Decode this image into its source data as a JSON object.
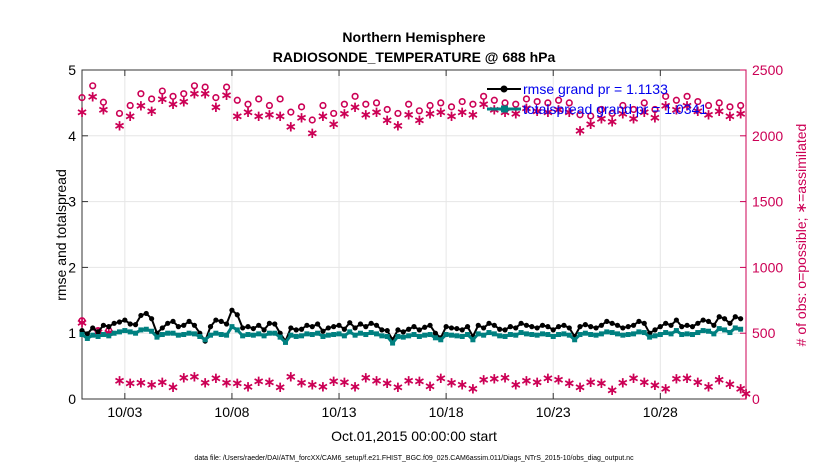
{
  "chart_data": {
    "type": "line",
    "title": "Northern Hemisphere",
    "subtitle": "RADIOSONDE_TEMPERATURE @ 688 hPa",
    "xlabel": "Oct.01,2015 00:00:00 start",
    "ylabel_left": "rmse and totalspread",
    "ylabel_right": "# of obs: o=possible; ∗=assimilated",
    "footnote": "data file: /Users/raeder/DAI/ATM_forcXX/CAM6_setup/f.e21.FHIST_BGC.f09_025.CAM6assim.011/Diags_NTrS_2015-10/obs_diag_output.nc",
    "xlim": [
      1.0,
      32.0
    ],
    "ylim_left": [
      0,
      5
    ],
    "ylim_right": [
      0,
      2500
    ],
    "x_ticks": [
      3,
      8,
      13,
      18,
      23,
      28
    ],
    "x_tick_labels": [
      "10/03",
      "10/08",
      "10/13",
      "10/18",
      "10/23",
      "10/28"
    ],
    "y_ticks_left": [
      0,
      1,
      2,
      3,
      4,
      5
    ],
    "y_ticks_right": [
      0,
      500,
      1000,
      1500,
      2000,
      2500
    ],
    "colors": {
      "rmse": "#000000",
      "spread": "#008080",
      "obs": "#cc0055",
      "legend_text": "#0000ee",
      "grid": "#e6e6e6"
    },
    "legend": {
      "location": "top-right",
      "entries": [
        {
          "name": "rmse grand pr = 1.1133",
          "color": "#000000"
        },
        {
          "name": "totalspread grand pr = 1.0341",
          "color": "#008080"
        }
      ]
    },
    "x": [
      1.0,
      1.25,
      1.5,
      1.75,
      2.0,
      2.25,
      2.5,
      2.75,
      3.0,
      3.25,
      3.5,
      3.75,
      4.0,
      4.25,
      4.5,
      4.75,
      5.0,
      5.25,
      5.5,
      5.75,
      6.0,
      6.25,
      6.5,
      6.75,
      7.0,
      7.25,
      7.5,
      7.75,
      8.0,
      8.25,
      8.5,
      8.75,
      9.0,
      9.25,
      9.5,
      9.75,
      10.0,
      10.25,
      10.5,
      10.75,
      11.0,
      11.25,
      11.5,
      11.75,
      12.0,
      12.25,
      12.5,
      12.75,
      13.0,
      13.25,
      13.5,
      13.75,
      14.0,
      14.25,
      14.5,
      14.75,
      15.0,
      15.25,
      15.5,
      15.75,
      16.0,
      16.25,
      16.5,
      16.75,
      17.0,
      17.25,
      17.5,
      17.75,
      18.0,
      18.25,
      18.5,
      18.75,
      19.0,
      19.25,
      19.5,
      19.75,
      20.0,
      20.25,
      20.5,
      20.75,
      21.0,
      21.25,
      21.5,
      21.75,
      22.0,
      22.25,
      22.5,
      22.75,
      23.0,
      23.25,
      23.5,
      23.75,
      24.0,
      24.25,
      24.5,
      24.75,
      25.0,
      25.25,
      25.5,
      25.75,
      26.0,
      26.25,
      26.5,
      26.75,
      27.0,
      27.25,
      27.5,
      27.75,
      28.0,
      28.25,
      28.5,
      28.75,
      29.0,
      29.25,
      29.5,
      29.75,
      30.0,
      30.25,
      30.5,
      30.75,
      31.0,
      31.25,
      31.5,
      31.75
    ],
    "series": [
      {
        "name": "rmse",
        "axis": "left",
        "color": "#000000",
        "values": [
          1.04,
          0.99,
          1.08,
          1.02,
          1.12,
          1.1,
          1.15,
          1.17,
          1.2,
          1.14,
          1.13,
          1.27,
          1.3,
          1.22,
          1.0,
          1.08,
          1.15,
          1.18,
          1.1,
          1.12,
          1.18,
          1.12,
          1.0,
          0.88,
          1.1,
          1.2,
          1.18,
          1.14,
          1.35,
          1.28,
          1.08,
          1.1,
          1.07,
          1.12,
          1.05,
          1.15,
          1.14,
          1.0,
          0.88,
          1.08,
          1.05,
          1.06,
          1.12,
          1.1,
          1.14,
          1.03,
          1.08,
          1.1,
          1.12,
          1.06,
          1.16,
          1.08,
          1.14,
          1.1,
          1.15,
          1.12,
          1.05,
          1.04,
          0.9,
          1.05,
          1.02,
          1.06,
          1.1,
          1.05,
          1.09,
          1.12,
          1.0,
          0.93,
          1.1,
          1.08,
          1.07,
          1.05,
          1.1,
          0.95,
          1.12,
          1.08,
          1.15,
          1.12,
          1.06,
          1.05,
          1.1,
          1.08,
          1.15,
          1.12,
          1.1,
          1.08,
          1.12,
          1.1,
          1.05,
          1.1,
          1.12,
          1.08,
          0.95,
          1.1,
          1.13,
          1.1,
          1.08,
          1.12,
          1.18,
          1.15,
          1.12,
          1.08,
          1.1,
          1.12,
          1.18,
          1.15,
          1.0,
          1.05,
          1.1,
          1.15,
          1.12,
          1.2,
          1.1,
          1.12,
          1.1,
          1.15,
          1.2,
          1.18,
          1.12,
          1.25,
          1.22,
          1.15,
          1.25,
          1.22
        ]
      },
      {
        "name": "totalspread",
        "axis": "left",
        "color": "#008080",
        "values": [
          0.98,
          0.92,
          0.97,
          0.95,
          0.98,
          0.96,
          1.0,
          1.02,
          1.04,
          1.02,
          1.0,
          1.05,
          1.06,
          1.03,
          0.94,
          0.98,
          1.0,
          1.0,
          0.97,
          0.98,
          1.0,
          0.99,
          0.95,
          0.9,
          0.97,
          1.0,
          0.98,
          0.97,
          1.1,
          1.05,
          0.96,
          0.98,
          0.97,
          0.99,
          0.96,
          1.0,
          1.0,
          0.94,
          0.86,
          0.97,
          0.95,
          0.96,
          0.99,
          0.98,
          1.0,
          0.95,
          0.97,
          0.98,
          0.99,
          0.96,
          1.02,
          0.97,
          1.0,
          0.98,
          1.01,
          0.99,
          0.96,
          0.95,
          0.85,
          0.95,
          0.94,
          0.96,
          0.98,
          0.95,
          0.97,
          0.98,
          0.93,
          0.9,
          0.98,
          0.97,
          0.96,
          0.95,
          0.98,
          0.9,
          0.99,
          0.97,
          1.01,
          0.99,
          0.96,
          0.95,
          0.98,
          0.97,
          1.01,
          0.99,
          0.98,
          0.97,
          0.99,
          0.98,
          0.95,
          0.98,
          0.99,
          0.97,
          0.9,
          0.98,
          1.0,
          0.98,
          0.97,
          0.99,
          1.02,
          1.01,
          0.99,
          0.97,
          0.98,
          0.99,
          1.02,
          1.01,
          0.94,
          0.96,
          0.98,
          1.01,
          0.99,
          1.04,
          0.98,
          0.99,
          0.98,
          1.01,
          1.04,
          1.03,
          0.99,
          1.07,
          1.05,
          1.01,
          1.08,
          1.06
        ]
      }
    ],
    "obs_series": [
      {
        "name": "possible",
        "axis": "right",
        "marker": "o",
        "color": "#cc0055",
        "points": [
          [
            1.0,
            2290
          ],
          [
            1.0,
            595
          ],
          [
            1.5,
            2380
          ],
          [
            1.75,
            520
          ],
          [
            2.0,
            2255
          ],
          [
            2.25,
            520
          ],
          [
            2.75,
            2170
          ],
          [
            3.25,
            2230
          ],
          [
            3.75,
            2320
          ],
          [
            4.25,
            2280
          ],
          [
            4.75,
            2340
          ],
          [
            5.25,
            2300
          ],
          [
            5.75,
            2320
          ],
          [
            6.25,
            2380
          ],
          [
            6.75,
            2370
          ],
          [
            7.25,
            2290
          ],
          [
            7.75,
            2370
          ],
          [
            8.25,
            2270
          ],
          [
            8.75,
            2240
          ],
          [
            9.25,
            2280
          ],
          [
            9.75,
            2230
          ],
          [
            10.25,
            2280
          ],
          [
            10.75,
            2180
          ],
          [
            11.25,
            2220
          ],
          [
            11.75,
            2120
          ],
          [
            12.25,
            2230
          ],
          [
            12.75,
            2170
          ],
          [
            13.25,
            2240
          ],
          [
            13.75,
            2300
          ],
          [
            14.25,
            2240
          ],
          [
            14.75,
            2250
          ],
          [
            15.25,
            2200
          ],
          [
            15.75,
            2170
          ],
          [
            16.25,
            2240
          ],
          [
            16.75,
            2190
          ],
          [
            17.25,
            2230
          ],
          [
            17.75,
            2250
          ],
          [
            18.25,
            2220
          ],
          [
            18.75,
            2260
          ],
          [
            19.25,
            2240
          ],
          [
            19.75,
            2300
          ],
          [
            20.25,
            2270
          ],
          [
            20.75,
            2250
          ],
          [
            21.25,
            2240
          ],
          [
            21.75,
            2280
          ],
          [
            22.25,
            2260
          ],
          [
            22.75,
            2250
          ],
          [
            23.25,
            2270
          ],
          [
            23.75,
            2250
          ],
          [
            24.25,
            2160
          ],
          [
            24.75,
            2150
          ],
          [
            25.25,
            2200
          ],
          [
            25.75,
            2170
          ],
          [
            26.25,
            2230
          ],
          [
            26.75,
            2200
          ],
          [
            27.25,
            2250
          ],
          [
            27.75,
            2200
          ],
          [
            28.25,
            2300
          ],
          [
            28.75,
            2270
          ],
          [
            29.25,
            2300
          ],
          [
            29.75,
            2260
          ],
          [
            30.25,
            2230
          ],
          [
            30.75,
            2250
          ],
          [
            31.25,
            2220
          ],
          [
            31.75,
            2230
          ]
        ]
      },
      {
        "name": "assimilated",
        "axis": "right",
        "marker": "*",
        "color": "#cc0055",
        "points": [
          [
            1.0,
            2180
          ],
          [
            1.0,
            580
          ],
          [
            1.5,
            2300
          ],
          [
            1.75,
            510
          ],
          [
            2.0,
            2200
          ],
          [
            2.25,
            505
          ],
          [
            2.75,
            2080
          ],
          [
            3.25,
            2150
          ],
          [
            3.75,
            2230
          ],
          [
            4.25,
            2190
          ],
          [
            4.75,
            2280
          ],
          [
            5.25,
            2240
          ],
          [
            5.75,
            2260
          ],
          [
            6.25,
            2320
          ],
          [
            6.75,
            2320
          ],
          [
            7.25,
            2220
          ],
          [
            7.75,
            2310
          ],
          [
            8.25,
            2150
          ],
          [
            8.75,
            2180
          ],
          [
            9.25,
            2150
          ],
          [
            9.75,
            2160
          ],
          [
            10.25,
            2150
          ],
          [
            10.75,
            2070
          ],
          [
            11.25,
            2140
          ],
          [
            11.75,
            2020
          ],
          [
            12.25,
            2150
          ],
          [
            12.75,
            2090
          ],
          [
            13.25,
            2170
          ],
          [
            13.75,
            2220
          ],
          [
            14.25,
            2160
          ],
          [
            14.75,
            2180
          ],
          [
            15.25,
            2120
          ],
          [
            15.75,
            2080
          ],
          [
            16.25,
            2160
          ],
          [
            16.75,
            2120
          ],
          [
            17.25,
            2170
          ],
          [
            17.75,
            2180
          ],
          [
            18.25,
            2150
          ],
          [
            18.75,
            2180
          ],
          [
            19.25,
            2160
          ],
          [
            19.75,
            2240
          ],
          [
            20.25,
            2200
          ],
          [
            20.75,
            2180
          ],
          [
            21.25,
            2170
          ],
          [
            21.75,
            2210
          ],
          [
            22.25,
            2190
          ],
          [
            22.75,
            2180
          ],
          [
            23.25,
            2200
          ],
          [
            23.75,
            2180
          ],
          [
            24.25,
            2040
          ],
          [
            24.75,
            2090
          ],
          [
            25.25,
            2130
          ],
          [
            25.75,
            2110
          ],
          [
            26.25,
            2170
          ],
          [
            26.75,
            2130
          ],
          [
            27.25,
            2180
          ],
          [
            27.75,
            2140
          ],
          [
            28.25,
            2230
          ],
          [
            28.75,
            2200
          ],
          [
            29.25,
            2230
          ],
          [
            29.75,
            2190
          ],
          [
            30.25,
            2160
          ],
          [
            30.75,
            2190
          ],
          [
            31.25,
            2150
          ],
          [
            31.75,
            2170
          ],
          [
            2.75,
            140
          ],
          [
            3.25,
            120
          ],
          [
            3.75,
            125
          ],
          [
            4.25,
            110
          ],
          [
            4.75,
            130
          ],
          [
            5.25,
            90
          ],
          [
            5.75,
            165
          ],
          [
            6.25,
            170
          ],
          [
            6.75,
            125
          ],
          [
            7.25,
            160
          ],
          [
            7.75,
            125
          ],
          [
            8.25,
            120
          ],
          [
            8.75,
            95
          ],
          [
            9.25,
            135
          ],
          [
            9.75,
            130
          ],
          [
            10.25,
            90
          ],
          [
            10.75,
            170
          ],
          [
            11.25,
            125
          ],
          [
            11.75,
            110
          ],
          [
            12.25,
            95
          ],
          [
            12.75,
            135
          ],
          [
            13.25,
            130
          ],
          [
            13.75,
            95
          ],
          [
            14.25,
            165
          ],
          [
            14.75,
            140
          ],
          [
            15.25,
            120
          ],
          [
            15.75,
            90
          ],
          [
            16.25,
            140
          ],
          [
            16.75,
            135
          ],
          [
            17.25,
            100
          ],
          [
            17.75,
            160
          ],
          [
            18.25,
            125
          ],
          [
            18.75,
            110
          ],
          [
            19.25,
            80
          ],
          [
            19.75,
            150
          ],
          [
            20.25,
            155
          ],
          [
            20.75,
            165
          ],
          [
            21.25,
            110
          ],
          [
            21.75,
            140
          ],
          [
            22.25,
            130
          ],
          [
            22.75,
            160
          ],
          [
            23.25,
            150
          ],
          [
            23.75,
            120
          ],
          [
            24.25,
            90
          ],
          [
            24.75,
            130
          ],
          [
            25.25,
            120
          ],
          [
            25.75,
            70
          ],
          [
            26.25,
            125
          ],
          [
            26.75,
            160
          ],
          [
            27.25,
            130
          ],
          [
            27.75,
            105
          ],
          [
            28.25,
            80
          ],
          [
            28.75,
            155
          ],
          [
            29.25,
            160
          ],
          [
            29.75,
            130
          ],
          [
            30.25,
            95
          ],
          [
            30.75,
            150
          ],
          [
            31.25,
            115
          ],
          [
            31.75,
            80
          ],
          [
            32.0,
            40
          ]
        ]
      }
    ]
  }
}
